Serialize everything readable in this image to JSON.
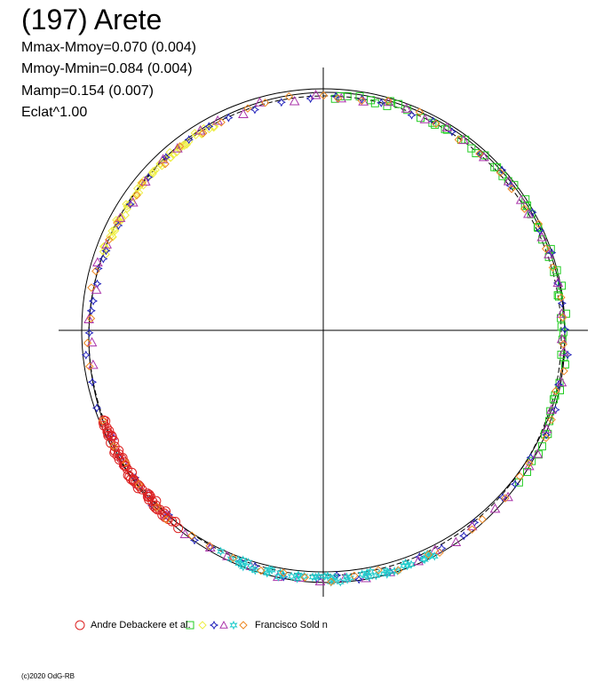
{
  "title": "(197) Arete",
  "stats": [
    "Mmax-Mmoy=0.070 (0.004)",
    "Mmoy-Mmin=0.084 (0.004)",
    "Mamp=0.154 (0.007)",
    "Eclat^1.00"
  ],
  "legend": {
    "left_label": "Andre Debackere et al.",
    "right_label": "Francisco Sold n",
    "markers": [
      {
        "shape": "circle",
        "color": "#dd2222"
      },
      {
        "shape": "diamond",
        "color": "#eeee44"
      },
      {
        "shape": "square",
        "color": "#22cc22"
      },
      {
        "shape": "star4",
        "color": "#2222bb"
      },
      {
        "shape": "triangle",
        "color": "#aa33aa"
      },
      {
        "shape": "star6",
        "color": "#22cccc"
      },
      {
        "shape": "diamond",
        "color": "#ee8822"
      }
    ]
  },
  "copyright": "(c)2020 OdG-RB",
  "chart_data": {
    "type": "scatter",
    "projection": "polar",
    "description_axes": "crosshair through circle center",
    "reference_circle": true,
    "series": [
      {
        "shape": "square",
        "color": "#22cc22",
        "angle_range_deg": [
          -88,
          35
        ]
      },
      {
        "shape": "diamond",
        "color": "#eeee44",
        "angle_range_deg": [
          -160,
          -118
        ]
      },
      {
        "shape": "star4",
        "color": "#2222bb",
        "angle_range_deg": [
          -170,
          200
        ]
      },
      {
        "shape": "triangle",
        "color": "#aa33aa",
        "angle_range_deg": [
          -186,
          155
        ]
      },
      {
        "shape": "circle",
        "color": "#dd2222",
        "angle_range_deg": [
          160,
          130
        ]
      },
      {
        "shape": "star6",
        "color": "#22cccc",
        "angle_range_deg": [
          115,
          62
        ]
      },
      {
        "shape": "diamond",
        "color": "#ee8822",
        "angle_range_deg": [
          -186,
          160
        ]
      }
    ]
  }
}
